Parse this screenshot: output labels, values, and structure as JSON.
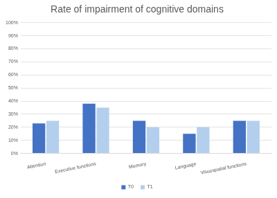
{
  "chart_data": {
    "type": "bar",
    "title": "Rate of impairment of cognitive domains",
    "categories": [
      "Attention",
      "Executive functions",
      "Memory",
      "Language",
      "Visuospatial functions"
    ],
    "series": [
      {
        "name": "T0",
        "color": "#4472c4",
        "values": [
          23,
          38,
          25,
          15,
          25
        ]
      },
      {
        "name": "T1",
        "color": "#b4cfee",
        "values": [
          25,
          35,
          20,
          20,
          25
        ]
      }
    ],
    "ylim": [
      0,
      100
    ],
    "yticks": [
      {
        "value": 0,
        "label": "0%"
      },
      {
        "value": 10,
        "label": "10%"
      },
      {
        "value": 20,
        "label": "20%"
      },
      {
        "value": 30,
        "label": "30%"
      },
      {
        "value": 40,
        "label": "40%"
      },
      {
        "value": 50,
        "label": "50%"
      },
      {
        "value": 60,
        "label": "60%"
      },
      {
        "value": 70,
        "label": "70%"
      },
      {
        "value": 80,
        "label": "80%"
      },
      {
        "value": 90,
        "label": "90%"
      },
      {
        "value": 100,
        "label": "100%"
      }
    ],
    "grid": true,
    "legend": "bottom"
  }
}
